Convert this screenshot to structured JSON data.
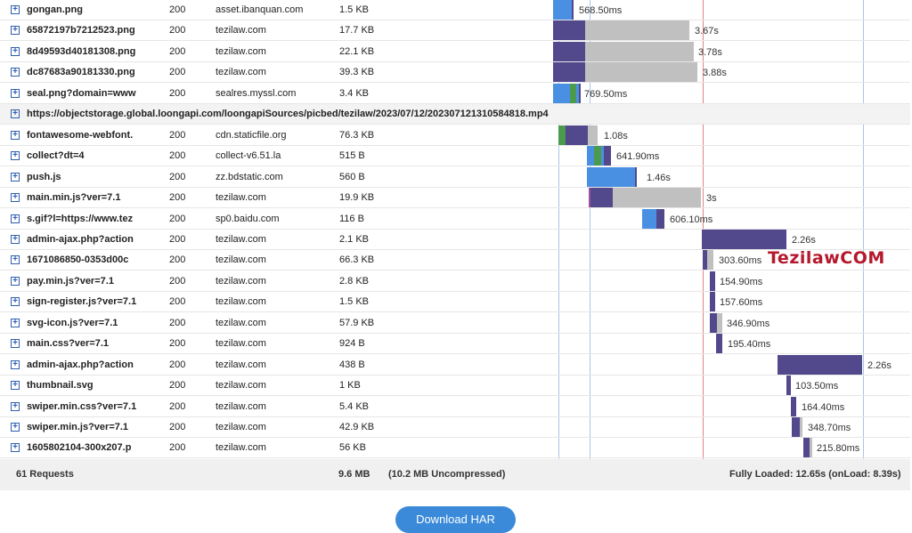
{
  "colors": {
    "blocked": "#c0c0c0",
    "dns": "#4c9a4e",
    "connect": "#e88a2e",
    "ssl": "#a050a0",
    "wait": "#4a90e2",
    "send": "#1e2a6e",
    "receive": "#52488c",
    "grid_blue": "#a7c6e8",
    "grid_red": "#e08484"
  },
  "rows": [
    {
      "url": "gongan.png",
      "status": "200",
      "domain": "asset.ibanquan.com",
      "size": "1.5 KB",
      "time": "568.50ms"
    },
    {
      "url": "65872197b7212523.png",
      "status": "200",
      "domain": "tezilaw.com",
      "size": "17.7 KB",
      "time": "3.67s"
    },
    {
      "url": "8d49593d40181308.png",
      "status": "200",
      "domain": "tezilaw.com",
      "size": "22.1 KB",
      "time": "3.78s"
    },
    {
      "url": "dc87683a90181330.png",
      "status": "200",
      "domain": "tezilaw.com",
      "size": "39.3 KB",
      "time": "3.88s"
    },
    {
      "url": "seal.png?domain=www",
      "status": "200",
      "domain": "sealres.myssl.com",
      "size": "3.4 KB",
      "time": "769.50ms"
    },
    {
      "url": "https://objectstorage.global.loongapi.com/loongapiSources/picbed/tezilaw/2023/07/12/202307121310584818.mp4",
      "status": "",
      "domain": "",
      "size": "",
      "time": "",
      "full": true
    },
    {
      "url": "fontawesome-webfont.",
      "status": "200",
      "domain": "cdn.staticfile.org",
      "size": "76.3 KB",
      "time": "1.08s"
    },
    {
      "url": "collect?dt=4",
      "status": "200",
      "domain": "collect-v6.51.la",
      "size": "515 B",
      "time": "641.90ms"
    },
    {
      "url": "push.js",
      "status": "200",
      "domain": "zz.bdstatic.com",
      "size": "560 B",
      "time": "1.46s"
    },
    {
      "url": "main.min.js?ver=7.1",
      "status": "200",
      "domain": "tezilaw.com",
      "size": "19.9 KB",
      "time": "3s"
    },
    {
      "url": "s.gif?l=https://www.tez",
      "status": "200",
      "domain": "sp0.baidu.com",
      "size": "116 B",
      "time": "606.10ms"
    },
    {
      "url": "admin-ajax.php?action",
      "status": "200",
      "domain": "tezilaw.com",
      "size": "2.1 KB",
      "time": "2.26s"
    },
    {
      "url": "1671086850-0353d00c",
      "status": "200",
      "domain": "tezilaw.com",
      "size": "66.3 KB",
      "time": "303.60ms"
    },
    {
      "url": "pay.min.js?ver=7.1",
      "status": "200",
      "domain": "tezilaw.com",
      "size": "2.8 KB",
      "time": "154.90ms"
    },
    {
      "url": "sign-register.js?ver=7.1",
      "status": "200",
      "domain": "tezilaw.com",
      "size": "1.5 KB",
      "time": "157.60ms"
    },
    {
      "url": "svg-icon.js?ver=7.1",
      "status": "200",
      "domain": "tezilaw.com",
      "size": "57.9 KB",
      "time": "346.90ms"
    },
    {
      "url": "main.css?ver=7.1",
      "status": "200",
      "domain": "tezilaw.com",
      "size": "924 B",
      "time": "195.40ms"
    },
    {
      "url": "admin-ajax.php?action",
      "status": "200",
      "domain": "tezilaw.com",
      "size": "438 B",
      "time": "2.26s"
    },
    {
      "url": "thumbnail.svg",
      "status": "200",
      "domain": "tezilaw.com",
      "size": "1 KB",
      "time": "103.50ms"
    },
    {
      "url": "swiper.min.css?ver=7.1",
      "status": "200",
      "domain": "tezilaw.com",
      "size": "5.4 KB",
      "time": "164.40ms"
    },
    {
      "url": "swiper.min.js?ver=7.1",
      "status": "200",
      "domain": "tezilaw.com",
      "size": "42.9 KB",
      "time": "348.70ms"
    },
    {
      "url": "1605802104-300x207.p",
      "status": "200",
      "domain": "tezilaw.com",
      "size": "56 KB",
      "time": "215.80ms"
    }
  ],
  "footer": {
    "requests": "61 Requests",
    "total_size": "9.6 MB",
    "uncompressed": "(10.2 MB Uncompressed)",
    "loaded": "Fully Loaded: 12.65s (onLoad: 8.39s)"
  },
  "download_label": "Download HAR",
  "watermark": "TezilawCOM"
}
